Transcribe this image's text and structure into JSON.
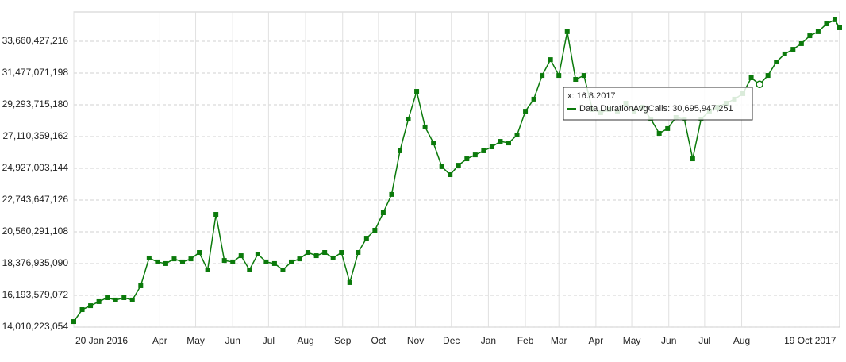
{
  "chart_data": {
    "type": "line",
    "series": [
      {
        "color": "#0b7a0b",
        "x": [
          0,
          7,
          14,
          21,
          28,
          35,
          42,
          49,
          56,
          63,
          70,
          77,
          84,
          91,
          98,
          105,
          112,
          119,
          126,
          133,
          140,
          147,
          154,
          161,
          168,
          175,
          182,
          189,
          196,
          203,
          210,
          217,
          224,
          231,
          238,
          245,
          252,
          259,
          266,
          273,
          280,
          287,
          294,
          301,
          308,
          315,
          322,
          329,
          336,
          343,
          350,
          357,
          364,
          371,
          378,
          385,
          392,
          399,
          406,
          413,
          420,
          427,
          434,
          441,
          448,
          455,
          462,
          469,
          476,
          483,
          490,
          497,
          504,
          511,
          518,
          525,
          532,
          539,
          546,
          553,
          560,
          567,
          574,
          581,
          588,
          595,
          602,
          609,
          616,
          623,
          630,
          637,
          641
        ],
        "values": [
          14390000000,
          15210000000,
          15480000000,
          15760000000,
          16030000000,
          15870000000,
          16030000000,
          15870000000,
          16850000000,
          18760000000,
          18490000000,
          18380000000,
          18700000000,
          18490000000,
          18700000000,
          19140000000,
          17940000000,
          21760000000,
          18590000000,
          18490000000,
          18920000000,
          17940000000,
          19030000000,
          18490000000,
          18380000000,
          17940000000,
          18490000000,
          18700000000,
          19140000000,
          18920000000,
          19140000000,
          18760000000,
          19140000000,
          17070000000,
          19140000000,
          20120000000,
          20670000000,
          21870000000,
          23130000000,
          26130000000,
          28310000000,
          30220000000,
          27770000000,
          26670000000,
          25040000000,
          24490000000,
          25140000000,
          25580000000,
          25850000000,
          26130000000,
          26400000000,
          26780000000,
          26670000000,
          27220000000,
          28850000000,
          29680000000,
          31310000000,
          32400000000,
          31310000000,
          34320000000,
          31040000000,
          31310000000,
          28970000000,
          28750000000,
          28970000000,
          28860000000,
          29400000000,
          28860000000,
          29130000000,
          28310000000,
          27330000000,
          27660000000,
          28420000000,
          28310000000,
          25580000000,
          28310000000,
          28860000000,
          29130000000,
          29400000000,
          29680000000,
          30060000000,
          31150000000,
          30695947251,
          31310000000,
          32240000000,
          32790000000,
          33110000000,
          33500000000,
          34040000000,
          34320000000,
          34860000000,
          35140000000,
          34590000000
        ]
      }
    ],
    "xlim": [
      0,
      641
    ],
    "xticks": [
      {
        "value": 0,
        "label": "20 Jan 2016"
      },
      {
        "value": 72,
        "label": "Apr"
      },
      {
        "value": 102,
        "label": "May"
      },
      {
        "value": 133,
        "label": "Jun"
      },
      {
        "value": 163,
        "label": "Jul"
      },
      {
        "value": 194,
        "label": "Aug"
      },
      {
        "value": 225,
        "label": "Sep"
      },
      {
        "value": 255,
        "label": "Oct"
      },
      {
        "value": 286,
        "label": "Nov"
      },
      {
        "value": 316,
        "label": "Dec"
      },
      {
        "value": 347,
        "label": "Jan"
      },
      {
        "value": 378,
        "label": "Feb"
      },
      {
        "value": 406,
        "label": "Mar"
      },
      {
        "value": 437,
        "label": "Apr"
      },
      {
        "value": 467,
        "label": "May"
      },
      {
        "value": 498,
        "label": "Jun"
      },
      {
        "value": 528,
        "label": "Jul"
      },
      {
        "value": 559,
        "label": "Aug"
      },
      {
        "value": 638,
        "label": "19 Oct 2017"
      }
    ],
    "ylim": [
      14010223054,
      35680000000
    ],
    "yticks": [
      {
        "value": 14010223054,
        "label": "14,010,223,054"
      },
      {
        "value": 16193579072,
        "label": "16,193,579,072"
      },
      {
        "value": 18376935090,
        "label": "18,376,935,090"
      },
      {
        "value": 20560291108,
        "label": "20,560,291,108"
      },
      {
        "value": 22743647126,
        "label": "22,743,647,126"
      },
      {
        "value": 24927003144,
        "label": "24,927,003,144"
      },
      {
        "value": 27110359162,
        "label": "27,110,359,162"
      },
      {
        "value": 29293715180,
        "label": "29,293,715,180"
      },
      {
        "value": 31477071198,
        "label": "31,477,071,198"
      },
      {
        "value": 33660427216,
        "label": "33,660,427,216"
      }
    ],
    "grid": true,
    "tooltip": {
      "title": "x: 16.8.2017",
      "text": "Data DurationAvgCalls: 30,695,947,251",
      "point": 82
    }
  }
}
